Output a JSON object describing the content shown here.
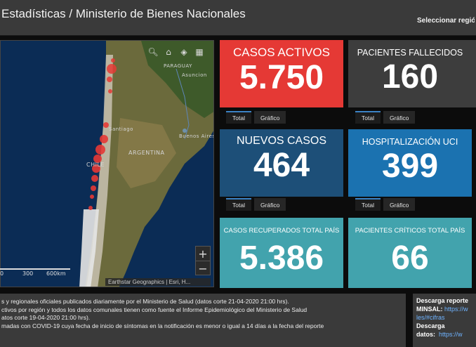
{
  "header": {
    "title": "Estadísticas / Ministerio de Bienes Nacionales",
    "region_selector": "Seleccionar región"
  },
  "map": {
    "labels": {
      "paraguay": "PARAGUAY",
      "asuncion": "Asuncion",
      "santiago": "Santiago",
      "buenos_aires": "Buenos Aires",
      "argentina": "ARGENTINA",
      "chile": "CHILE"
    },
    "scale": {
      "t0": "0",
      "t1": "300",
      "t2": "600km"
    },
    "attribution": "Earthstar Geographics | Esri, H...",
    "zoom_in": "+",
    "zoom_out": "−",
    "tool_icons": [
      "search-icon",
      "home-icon",
      "layers-icon",
      "basemap-icon"
    ]
  },
  "cards": {
    "activos": {
      "label": "CASOS ACTIVOS",
      "value": "5.750",
      "color": "#e53935"
    },
    "fallecidos": {
      "label": "PACIENTES FALLECIDOS",
      "value": "160",
      "color": "#3d3d3d"
    },
    "nuevos": {
      "label": "NUEVOS CASOS",
      "value": "464",
      "color": "#1d4f78"
    },
    "uci": {
      "label": "HOSPITALIZACIÓN UCI",
      "value": "399",
      "color": "#1b72b0"
    },
    "recuperados": {
      "label": "CASOS RECUPERADOS TOTAL PAÍS",
      "value": "5.386",
      "color": "#42a3ad"
    },
    "criticos": {
      "label": "PACIENTES CRÍTICOS TOTAL PAÍS",
      "value": "66",
      "color": "#42a3ad"
    }
  },
  "tabs": {
    "total": "Total",
    "grafico": "Gráfico"
  },
  "notes": {
    "line1": "s y regionales oficiales publicados diariamente por el Ministerio de Salud (datos corte 21-04-2020 21:00 hrs).",
    "line2": "ctivos por región y todos los datos comunales tienen como fuente el Informe Epidemiológico del Ministerio de Salud",
    "line3": "atos corte 19-04-2020 21:00 hrs).",
    "line4": "madas con COVID-19 cuya fecha de inicio de síntomas en la notificación es menor o igual a 14 días a la fecha del reporte"
  },
  "downloads": {
    "heading1": "Descarga reporte",
    "minsal_label": "MINSAL:",
    "minsal_link1": "https://w",
    "minsal_link2": "les/#cifras",
    "heading2": "Descarga",
    "datos_label": "datos:",
    "datos_link": "https://w"
  }
}
